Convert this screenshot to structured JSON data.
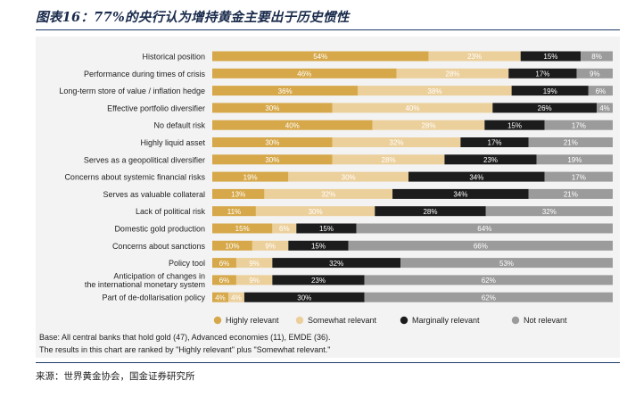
{
  "figure": {
    "title": "图表16：77%的央行认为增持黄金主要出于历史惯性",
    "base_note": "Base: All central banks that hold gold (47), Advanced economies (11), EMDE (36).",
    "rank_note": "The results in this chart are ranked by \"Highly relevant\" plus \"Somewhat relevant.\"",
    "source": "来源：世界黄金协会，国金证券研究所"
  },
  "chart_data": {
    "type": "bar",
    "orientation": "horizontal",
    "stacked": true,
    "unit": "%",
    "categories": [
      "Historical position",
      "Performance during times of crisis",
      "Long-term store of value / inflation hedge",
      "Effective portfolio diversifier",
      "No default risk",
      "Highly liquid asset",
      "Serves as a geopolitical diversifier",
      "Concerns about systemic financial risks",
      "Serves as valuable collateral",
      "Lack of political risk",
      "Domestic gold production",
      "Concerns about sanctions",
      "Policy tool",
      "Anticipation of changes in the international monetary system",
      "Part of de-dollarisation policy"
    ],
    "series": [
      {
        "name": "Highly relevant",
        "color": "#d6a84a",
        "values": [
          54,
          46,
          36,
          30,
          40,
          30,
          30,
          19,
          13,
          11,
          15,
          10,
          6,
          6,
          4
        ]
      },
      {
        "name": "Somewhat relevant",
        "color": "#ecd09c",
        "values": [
          23,
          28,
          38,
          40,
          28,
          32,
          28,
          30,
          32,
          30,
          6,
          9,
          9,
          9,
          4
        ]
      },
      {
        "name": "Marginally relevant",
        "color": "#1c1c1c",
        "values": [
          15,
          17,
          19,
          26,
          15,
          17,
          23,
          34,
          34,
          28,
          15,
          15,
          32,
          23,
          30
        ]
      },
      {
        "name": "Not relevant",
        "color": "#9b9b9b",
        "values": [
          8,
          9,
          6,
          4,
          17,
          21,
          19,
          17,
          21,
          32,
          64,
          66,
          53,
          62,
          62
        ]
      }
    ],
    "label_colors": [
      "#ffffff",
      "#ffffff",
      "#ffffff",
      "#ffffff"
    ],
    "legend_position": "bottom",
    "grid": false
  }
}
